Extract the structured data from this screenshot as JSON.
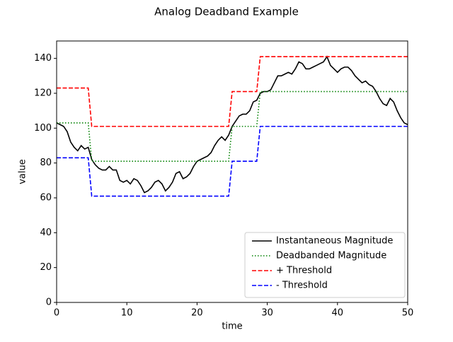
{
  "chart_data": {
    "type": "line",
    "title": "Analog Deadband Example",
    "x_label": "time",
    "y_label": "value",
    "x": [
      0,
      0.5,
      1,
      1.5,
      2,
      2.5,
      3,
      3.5,
      4,
      4.5,
      5,
      5.5,
      6,
      6.5,
      7,
      7.5,
      8,
      8.5,
      9,
      9.5,
      10,
      10.5,
      11,
      11.5,
      12,
      12.5,
      13,
      13.5,
      14,
      14.5,
      15,
      15.5,
      16,
      16.5,
      17,
      17.5,
      18,
      18.5,
      19,
      19.5,
      20,
      20.5,
      21,
      21.5,
      22,
      22.5,
      23,
      23.5,
      24,
      24.5,
      25,
      25.5,
      26,
      26.5,
      27,
      27.5,
      28,
      28.5,
      29,
      29.5,
      30,
      30.5,
      31,
      31.5,
      32,
      32.5,
      33,
      33.5,
      34,
      34.5,
      35,
      35.5,
      36,
      36.5,
      37,
      37.5,
      38,
      38.5,
      39,
      39.5,
      40,
      40.5,
      41,
      41.5,
      42,
      42.5,
      43,
      43.5,
      44,
      44.5,
      45,
      45.5,
      46,
      46.5,
      47,
      47.5,
      48,
      48.5,
      49,
      49.5,
      50
    ],
    "series": [
      {
        "name": "Instantaneous Magnitude",
        "color": "black",
        "linestyle": "solid",
        "values": [
          103,
          102,
          101,
          98,
          92,
          89,
          87,
          90,
          88,
          89,
          82,
          79,
          77,
          76,
          76,
          78,
          76,
          76,
          70,
          69,
          70,
          68,
          71,
          70,
          67,
          63,
          64,
          66,
          69,
          70,
          68,
          64,
          66,
          69,
          74,
          75,
          71,
          72,
          74,
          78,
          81,
          82,
          83,
          84,
          86,
          90,
          93,
          95,
          93,
          96,
          101,
          104,
          107,
          108,
          108,
          110,
          115,
          116,
          120,
          121,
          121,
          122,
          126,
          130,
          130,
          131,
          132,
          131,
          134,
          138,
          137,
          134,
          134,
          135,
          136,
          137,
          138,
          141,
          136,
          134,
          132,
          134,
          135,
          135,
          133,
          130,
          128,
          126,
          127,
          125,
          124,
          121,
          117,
          114,
          113,
          117,
          115,
          110,
          106,
          103,
          102
        ]
      },
      {
        "name": "Deadbanded Magnitude",
        "color": "green",
        "linestyle": "dotted",
        "values": [
          103,
          103,
          103,
          103,
          103,
          103,
          103,
          103,
          103,
          103,
          81,
          81,
          81,
          81,
          81,
          81,
          81,
          81,
          81,
          81,
          81,
          81,
          81,
          81,
          81,
          81,
          81,
          81,
          81,
          81,
          81,
          81,
          81,
          81,
          81,
          81,
          81,
          81,
          81,
          81,
          81,
          81,
          81,
          81,
          81,
          81,
          81,
          81,
          81,
          81,
          101,
          101,
          101,
          101,
          101,
          101,
          101,
          101,
          121,
          121,
          121,
          121,
          121,
          121,
          121,
          121,
          121,
          121,
          121,
          121,
          121,
          121,
          121,
          121,
          121,
          121,
          121,
          121,
          121,
          121,
          121,
          121,
          121,
          121,
          121,
          121,
          121,
          121,
          121,
          121,
          121,
          121,
          121,
          121,
          121,
          121,
          121,
          121,
          121,
          121,
          121
        ]
      },
      {
        "name": "+ Threshold",
        "color": "red",
        "linestyle": "dashed",
        "values": [
          123,
          123,
          123,
          123,
          123,
          123,
          123,
          123,
          123,
          123,
          101,
          101,
          101,
          101,
          101,
          101,
          101,
          101,
          101,
          101,
          101,
          101,
          101,
          101,
          101,
          101,
          101,
          101,
          101,
          101,
          101,
          101,
          101,
          101,
          101,
          101,
          101,
          101,
          101,
          101,
          101,
          101,
          101,
          101,
          101,
          101,
          101,
          101,
          101,
          101,
          121,
          121,
          121,
          121,
          121,
          121,
          121,
          121,
          141,
          141,
          141,
          141,
          141,
          141,
          141,
          141,
          141,
          141,
          141,
          141,
          141,
          141,
          141,
          141,
          141,
          141,
          141,
          141,
          141,
          141,
          141,
          141,
          141,
          141,
          141,
          141,
          141,
          141,
          141,
          141,
          141,
          141,
          141,
          141,
          141,
          141,
          141,
          141,
          141,
          141,
          141
        ]
      },
      {
        "name": "- Threshold",
        "color": "blue",
        "linestyle": "dashed",
        "values": [
          83,
          83,
          83,
          83,
          83,
          83,
          83,
          83,
          83,
          83,
          61,
          61,
          61,
          61,
          61,
          61,
          61,
          61,
          61,
          61,
          61,
          61,
          61,
          61,
          61,
          61,
          61,
          61,
          61,
          61,
          61,
          61,
          61,
          61,
          61,
          61,
          61,
          61,
          61,
          61,
          61,
          61,
          61,
          61,
          61,
          61,
          61,
          61,
          61,
          61,
          81,
          81,
          81,
          81,
          81,
          81,
          81,
          81,
          101,
          101,
          101,
          101,
          101,
          101,
          101,
          101,
          101,
          101,
          101,
          101,
          101,
          101,
          101,
          101,
          101,
          101,
          101,
          101,
          101,
          101,
          101,
          101,
          101,
          101,
          101,
          101,
          101,
          101,
          101,
          101,
          101,
          101,
          101,
          101,
          101,
          101,
          101,
          101,
          101,
          101,
          101
        ]
      }
    ],
    "xlim": [
      0,
      50
    ],
    "ylim": [
      0,
      150
    ],
    "xticks": [
      0,
      10,
      20,
      30,
      40,
      50
    ],
    "yticks": [
      0,
      20,
      40,
      60,
      80,
      100,
      120,
      140
    ],
    "grid": false,
    "legend": "lower right"
  }
}
